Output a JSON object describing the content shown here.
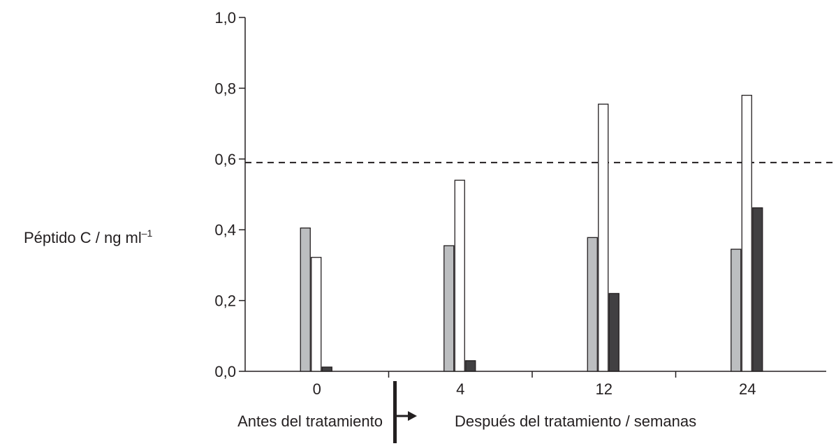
{
  "chart_data": {
    "type": "bar",
    "ylabel": "Péptido C / ng ml",
    "ylabel_superscript": "–1",
    "xlabel_left": "Antes del tratamiento",
    "xlabel_right": "Después del tratamiento / semanas",
    "categories": [
      "0",
      "4",
      "12",
      "24"
    ],
    "ylim": [
      0,
      1.0
    ],
    "yticks": [
      "0,0",
      "0,2",
      "0,4",
      "0,6",
      "0,8",
      "1,0"
    ],
    "reference_line": 0.59,
    "series": [
      {
        "color": "#bcbec0",
        "values": [
          0.405,
          0.355,
          0.378,
          0.345
        ]
      },
      {
        "color": "#ffffff",
        "values": [
          0.322,
          0.54,
          0.755,
          0.78
        ]
      },
      {
        "color": "#414042",
        "values": [
          0.012,
          0.03,
          0.22,
          0.462
        ]
      }
    ],
    "grid": false,
    "legend": "none"
  }
}
